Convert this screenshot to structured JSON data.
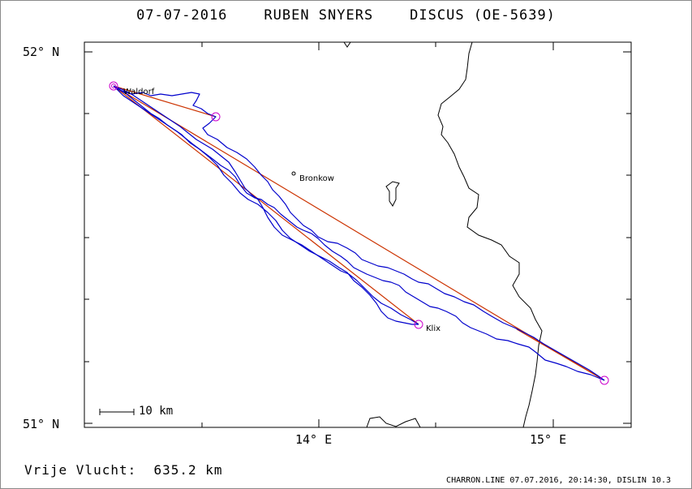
{
  "header": {
    "date": "07-07-2016",
    "pilot": "RUBEN SNYERS",
    "glider": "DISCUS (OE-5639)"
  },
  "axes": {
    "lat_top": "52° N",
    "lat_bottom": "51° N",
    "lon_1": "14° E",
    "lon_2": "15° E"
  },
  "places": {
    "start": "Waldorf",
    "bronkow": "Bronkow",
    "klix": "Klix"
  },
  "scale_bar": {
    "label": "10 km"
  },
  "footer": {
    "distance_label": "Vrije Vlucht:",
    "distance_value": "635.2 km",
    "credits": "CHARRON.LINE 07.07.2016, 20:14:30, DISLIN 10.3"
  },
  "colors": {
    "track": "#0000cc",
    "task": "#cc2200",
    "turnpoint": "#cc00cc",
    "border": "#000000"
  }
}
